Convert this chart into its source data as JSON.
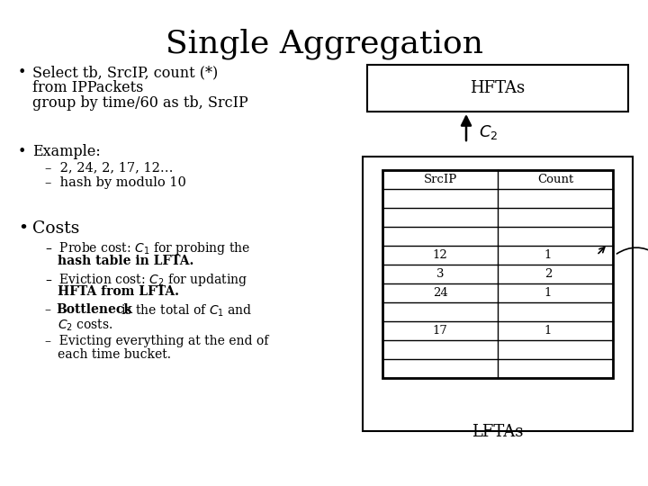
{
  "title": "Single Aggregation",
  "title_fontsize": 26,
  "bg_color": "#ffffff",
  "text_color": "#000000",
  "bullet1_lines": [
    "Select tb, SrcIP, count (*)",
    "from IPPackets",
    "group by time/60 as tb, SrcIP"
  ],
  "bullet2_header": "Example:",
  "bullet2_sub": [
    "2, 24, 2, 17, 12…",
    "hash by modulo 10"
  ],
  "bullet3_header": "Costs",
  "hfta_label": "HFTAs",
  "lfta_label": "LFTAs",
  "table_headers": [
    "SrcIP",
    "Count"
  ],
  "table_rows": [
    [
      "",
      ""
    ],
    [
      "",
      ""
    ],
    [
      "",
      ""
    ],
    [
      "12",
      "1"
    ],
    [
      "3",
      "2"
    ],
    [
      "24",
      "1"
    ],
    [
      "",
      ""
    ],
    [
      "17",
      "1"
    ],
    [
      "",
      ""
    ],
    [
      "",
      ""
    ]
  ],
  "c1_label": "$C_1$",
  "c2_label": "$C_2$"
}
